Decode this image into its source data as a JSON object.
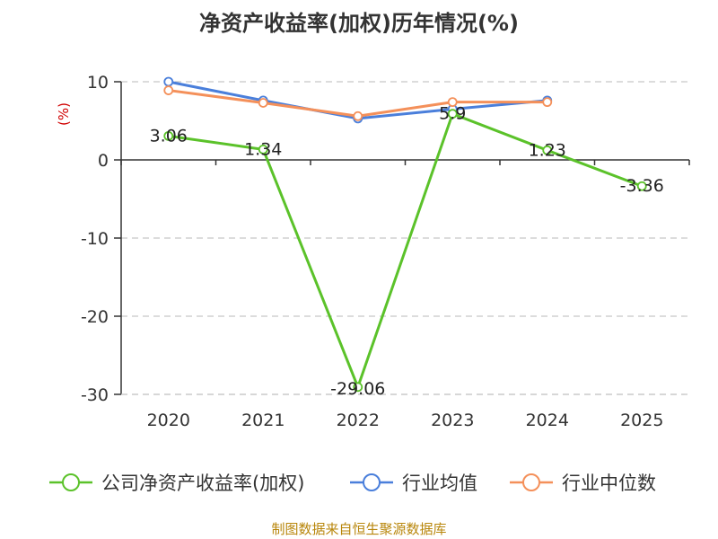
{
  "chart_data": {
    "type": "line",
    "title": "净资产收益率(加权)历年情况(%)",
    "ylabel": "(%)",
    "xlabel": "",
    "categories": [
      "2020",
      "2021",
      "2022",
      "2023",
      "2024",
      "2025"
    ],
    "ylim": [
      -30,
      10
    ],
    "yticks": [
      10,
      0,
      -10,
      -20,
      -30
    ],
    "grid": true,
    "legend": "bottom",
    "series": [
      {
        "name": "公司净资产收益率(加权)",
        "color": "#5bc22a",
        "values": [
          3.06,
          1.34,
          -29.06,
          5.9,
          1.23,
          -3.36
        ],
        "labels": [
          "3.06",
          "1.34",
          "-29.06",
          "5.9",
          "1.23",
          "-3.36"
        ]
      },
      {
        "name": "行业均值",
        "color": "#4a7fdb",
        "values": [
          10.0,
          7.6,
          5.3,
          6.5,
          7.6,
          null
        ]
      },
      {
        "name": "行业中位数",
        "color": "#f4905a",
        "values": [
          8.9,
          7.3,
          5.6,
          7.4,
          7.4,
          null
        ]
      }
    ],
    "source": "制图数据来自恒生聚源数据库"
  }
}
